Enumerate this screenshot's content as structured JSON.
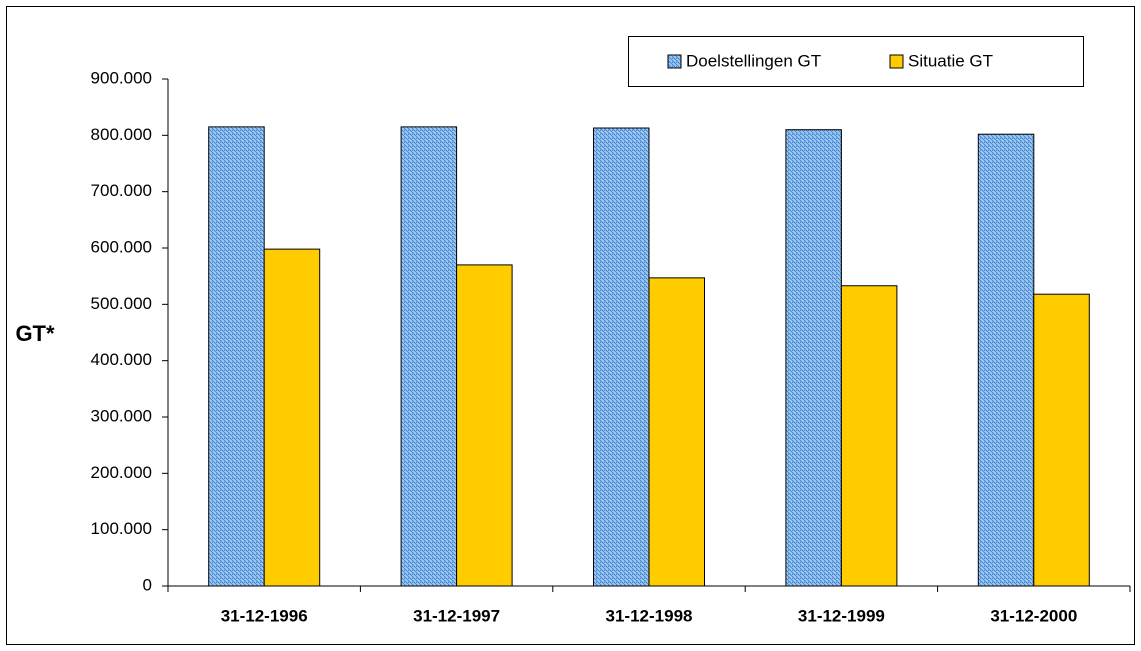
{
  "chart_data": {
    "type": "bar",
    "y_label": "GT*",
    "categories": [
      "31-12-1996",
      "31-12-1997",
      "31-12-1998",
      "31-12-1999",
      "31-12-2000"
    ],
    "series": [
      {
        "name": "Doelstellingen GT",
        "color": "#99ccff",
        "pattern": "diagonal",
        "values": [
          815000,
          815000,
          813000,
          810000,
          802000
        ]
      },
      {
        "name": "Situatie GT",
        "color": "#ffcc00",
        "values": [
          598000,
          570000,
          547000,
          533000,
          518000
        ]
      }
    ],
    "ylim": [
      0,
      900000
    ],
    "yticks": [
      0,
      {
        "value": 100000,
        "label": "100.000"
      },
      {
        "value": 200000,
        "label": "200.000"
      },
      {
        "value": 300000,
        "label": "300.000"
      },
      {
        "value": 400000,
        "label": "400.000"
      },
      {
        "value": 500000,
        "label": "500.000"
      },
      {
        "value": 600000,
        "label": "600.000"
      },
      {
        "value": 700000,
        "label": "700.000"
      },
      {
        "value": 800000,
        "label": "800.000"
      },
      {
        "value": 900000,
        "label": "900.000"
      }
    ],
    "grid": false,
    "legend": "top-right"
  }
}
